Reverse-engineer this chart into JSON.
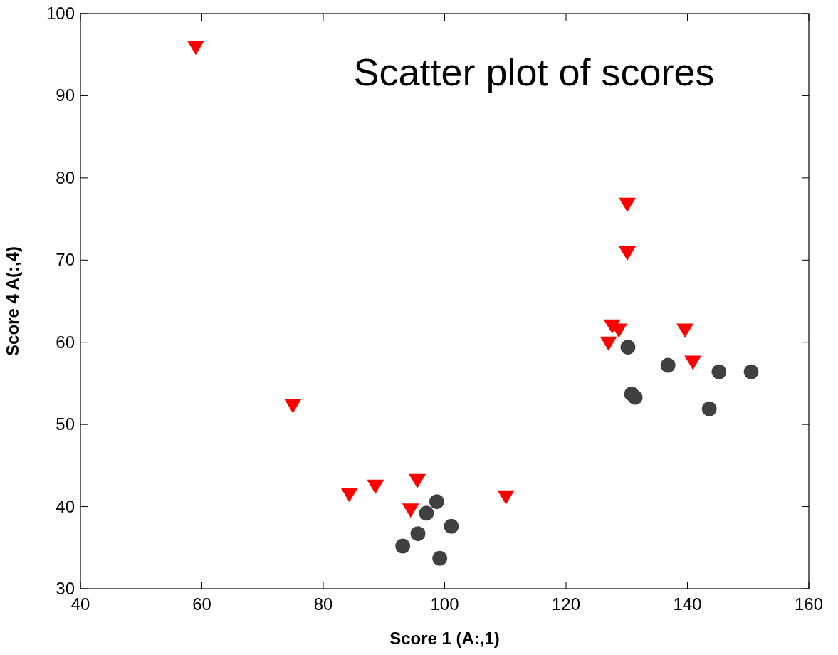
{
  "chart_data": {
    "type": "scatter",
    "title": "Scatter plot of scores",
    "xlabel": "Score  1 (A:,1)",
    "ylabel": "Score 4 A(:,4)",
    "xlim": [
      40,
      160
    ],
    "xticks": [
      40,
      60,
      80,
      100,
      120,
      140,
      160
    ],
    "ylim": [
      30,
      100
    ],
    "yticks": [
      30,
      40,
      50,
      60,
      70,
      80,
      90,
      100
    ],
    "grid": false,
    "series": [
      {
        "color": "#ff0000",
        "marker": "triangle",
        "x": [
          59,
          75,
          84.3,
          88.6,
          95.5,
          94.4,
          110.1,
          130.1,
          130.1,
          127.6,
          128.7,
          127,
          139.6,
          140.9
        ],
        "values": [
          95.9,
          52.3,
          41.5,
          42.5,
          43.2,
          39.6,
          41.2,
          76.8,
          70.9,
          62,
          61.5,
          59.9,
          61.5,
          57.6
        ]
      },
      {
        "color": "#404040",
        "marker": "circle",
        "x": [
          93.1,
          95.6,
          97,
          98.7,
          101.1,
          99.2,
          130.2,
          130.8,
          131.4,
          136.8,
          145.2,
          150.5,
          143.6
        ],
        "values": [
          35.2,
          36.7,
          39.2,
          40.6,
          37.6,
          33.7,
          59.4,
          53.7,
          53.3,
          57.2,
          56.4,
          56.4,
          51.9
        ]
      }
    ]
  }
}
